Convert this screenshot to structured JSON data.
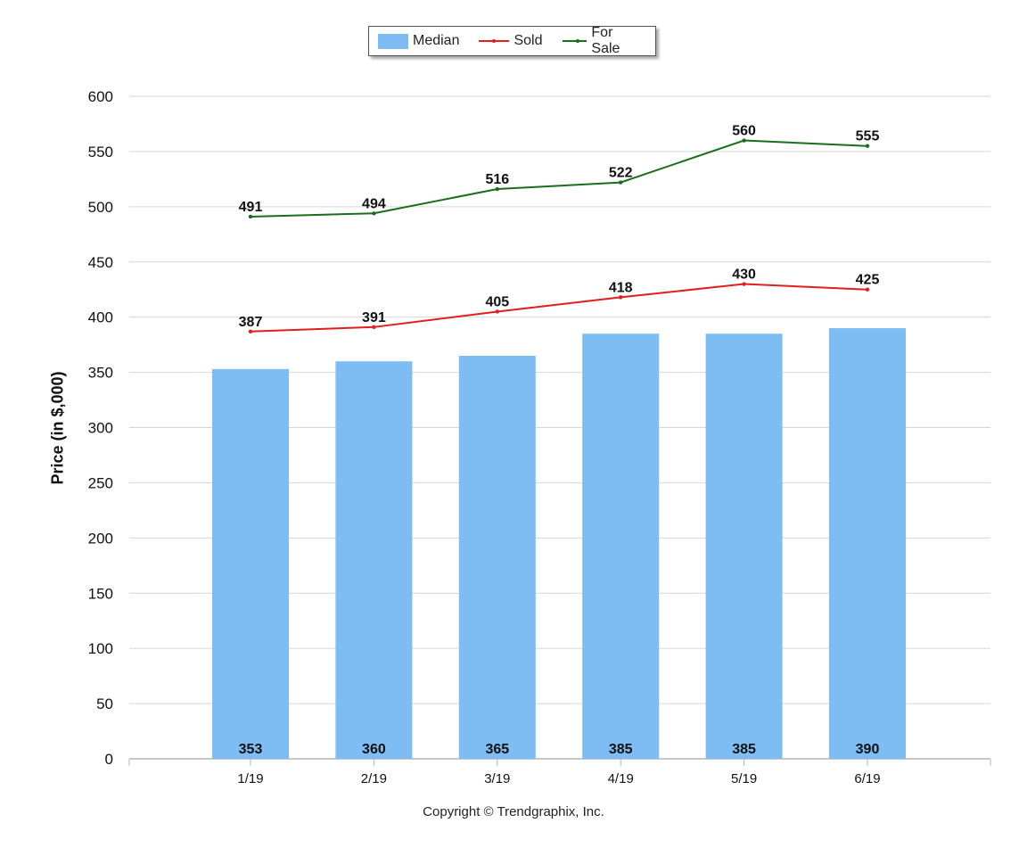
{
  "chart_data": {
    "type": "bar",
    "categories": [
      "1/19",
      "2/19",
      "3/19",
      "4/19",
      "5/19",
      "6/19"
    ],
    "series": [
      {
        "name": "Median",
        "kind": "bar",
        "color": "#7dbdf4",
        "values": [
          353,
          360,
          365,
          385,
          385,
          390
        ]
      },
      {
        "name": "Sold",
        "kind": "line",
        "color": "#e01e1e",
        "values": [
          387,
          391,
          405,
          418,
          430,
          425
        ]
      },
      {
        "name": "For Sale",
        "kind": "line",
        "color": "#1a6e1a",
        "values": [
          491,
          494,
          516,
          522,
          560,
          555
        ]
      }
    ],
    "ylabel": "Price (in $,000)",
    "xlabel": "",
    "ylim": [
      0,
      600
    ],
    "yticks": [
      0,
      50,
      100,
      150,
      200,
      250,
      300,
      350,
      400,
      450,
      500,
      550,
      600
    ],
    "grid": true,
    "legend_position": "top-center"
  },
  "footer": {
    "copyright": "Copyright © Trendgraphix, Inc."
  }
}
